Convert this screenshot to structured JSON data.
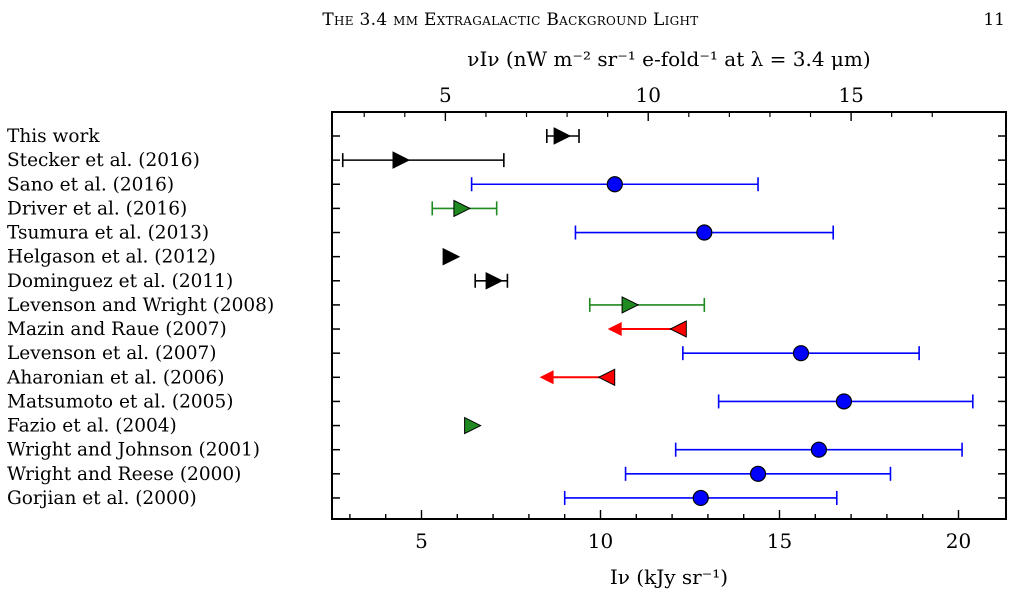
{
  "header": {
    "title": "The 3.4 μm Extragalactic Background Light",
    "page_number": "11"
  },
  "colors": {
    "black": "#000000",
    "blue": "#0000ff",
    "green": "#1f8a1f",
    "red": "#ff0000"
  },
  "chart_data": {
    "type": "scatter",
    "xlabel": "Iν  (kJy sr⁻¹)",
    "top_xlabel": "νIν  (nW m⁻² sr⁻¹ e-fold⁻¹ at λ = 3.4 μm)",
    "xlim": [
      2.5,
      21
    ],
    "x_ticks": [
      "5",
      "10",
      "15",
      "20"
    ],
    "top_ticks": [
      "5",
      "10",
      "15"
    ],
    "top_tick_positions": [
      5.667,
      11.333,
      17.0
    ],
    "grid": false,
    "rows": [
      {
        "label": "This work",
        "marker": "triangle-right",
        "color": "#000000",
        "x": 8.9,
        "lo": 8.5,
        "hi": 9.4
      },
      {
        "label": "Stecker et al. (2016)",
        "marker": "triangle-right",
        "color": "#000000",
        "x": 4.4,
        "lo": 2.8,
        "hi": 7.3
      },
      {
        "label": "Sano et al. (2016)",
        "marker": "circle",
        "color": "#0000ff",
        "x": 10.4,
        "lo": 6.4,
        "hi": 14.4
      },
      {
        "label": "Driver et al. (2016)",
        "marker": "triangle-right",
        "color": "#1f8a1f",
        "x": 6.1,
        "lo": 5.3,
        "hi": 7.1
      },
      {
        "label": "Tsumura et al. (2013)",
        "marker": "circle",
        "color": "#0000ff",
        "x": 12.9,
        "lo": 9.3,
        "hi": 16.5
      },
      {
        "label": "Helgason et al. (2012)",
        "marker": "triangle-right",
        "color": "#000000",
        "x": 5.8
      },
      {
        "label": "Dominguez et al. (2011)",
        "marker": "triangle-right",
        "color": "#000000",
        "x": 7.0,
        "lo": 6.5,
        "hi": 7.4
      },
      {
        "label": "Levenson and Wright (2008)",
        "marker": "triangle-right",
        "color": "#1f8a1f",
        "x": 10.8,
        "lo": 9.7,
        "hi": 12.9
      },
      {
        "label": "Mazin and Raue (2007)",
        "marker": "triangle-left",
        "color": "#ff0000",
        "x": 12.2,
        "arrow_to": 10.2
      },
      {
        "label": "Levenson et al. (2007)",
        "marker": "circle",
        "color": "#0000ff",
        "x": 15.6,
        "lo": 12.3,
        "hi": 18.9
      },
      {
        "label": "Aharonian et al. (2006)",
        "marker": "triangle-left",
        "color": "#ff0000",
        "x": 10.2,
        "arrow_to": 8.3
      },
      {
        "label": "Matsumoto et al. (2005)",
        "marker": "circle",
        "color": "#0000ff",
        "x": 16.8,
        "lo": 13.3,
        "hi": 20.4
      },
      {
        "label": "Fazio et al. (2004)",
        "marker": "triangle-right",
        "color": "#1f8a1f",
        "x": 6.4
      },
      {
        "label": "Wright and Johnson (2001)",
        "marker": "circle",
        "color": "#0000ff",
        "x": 16.1,
        "lo": 12.1,
        "hi": 20.1
      },
      {
        "label": "Wright and Reese (2000)",
        "marker": "circle",
        "color": "#0000ff",
        "x": 14.4,
        "lo": 10.7,
        "hi": 18.1
      },
      {
        "label": "Gorjian et al. (2000)",
        "marker": "circle",
        "color": "#0000ff",
        "x": 12.8,
        "lo": 9.0,
        "hi": 16.6
      }
    ]
  }
}
